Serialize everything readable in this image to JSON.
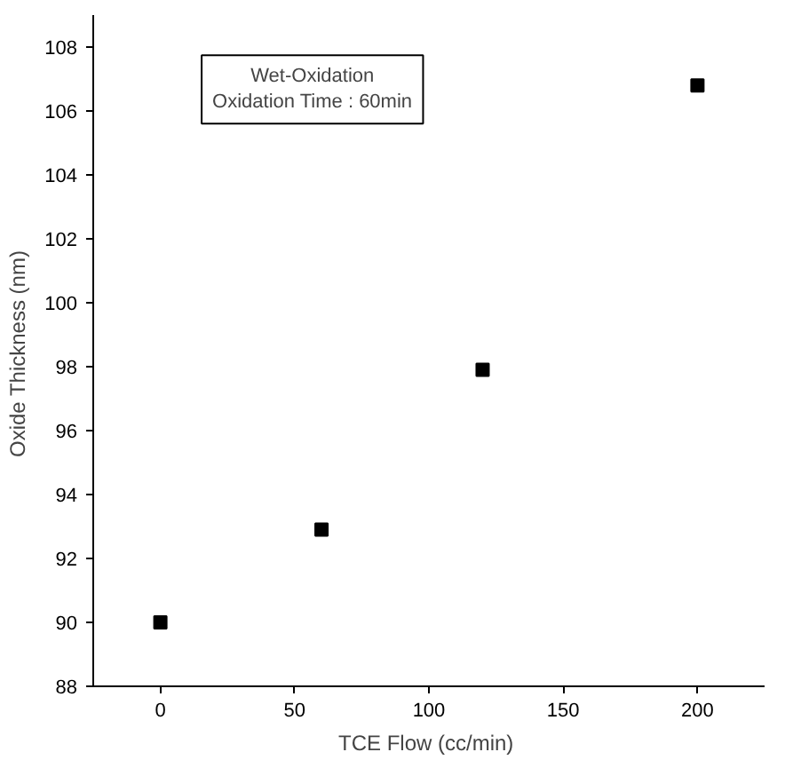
{
  "chart_data": {
    "type": "scatter",
    "xlabel": "TCE Flow  (cc/min)",
    "ylabel": "Oxide Thickness  (nm)",
    "x": [
      0,
      60,
      120,
      200
    ],
    "values": [
      90,
      92.9,
      97.9,
      106.8
    ],
    "color": "#000000",
    "marker": "square",
    "xlim": [
      -25,
      225
    ],
    "ylim": [
      88,
      109
    ],
    "xticks": [
      0,
      50,
      100,
      150,
      200
    ],
    "yticks": [
      88,
      90,
      92,
      94,
      96,
      98,
      100,
      102,
      104,
      106,
      108
    ],
    "annotations": [
      "Wet-Oxidation\nOxidation Time : 60min"
    ],
    "grid": false
  }
}
